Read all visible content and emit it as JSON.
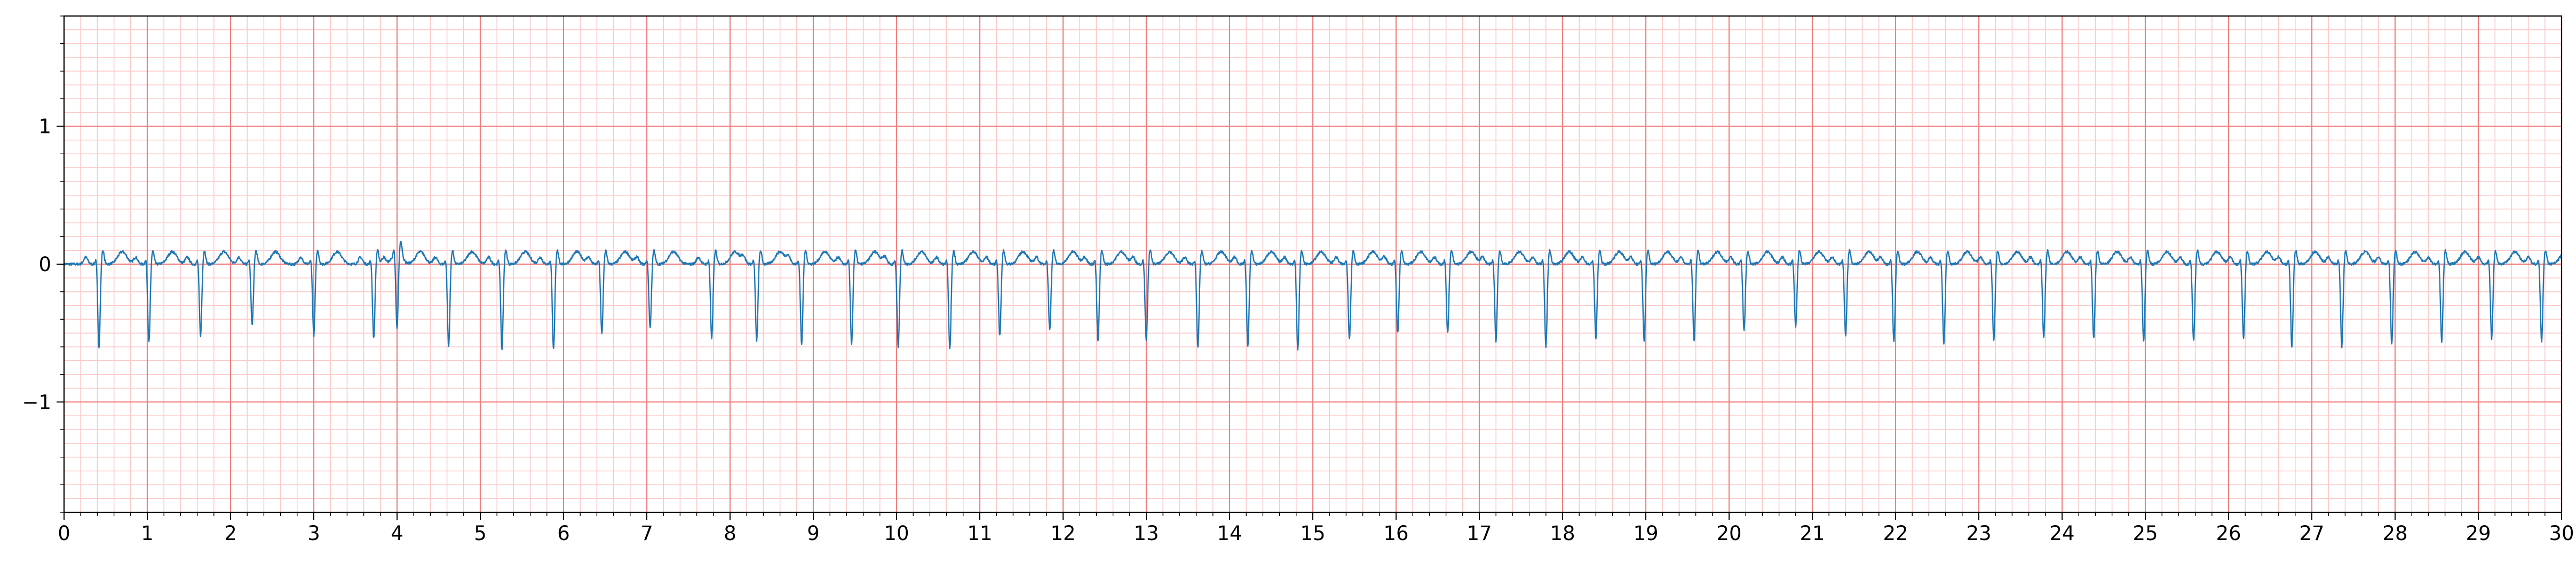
{
  "chart_data": {
    "type": "line",
    "title": "",
    "xlabel": "",
    "ylabel": "",
    "xlim": [
      0,
      30
    ],
    "ylim": [
      -1.8,
      1.8
    ],
    "x_ticks": [
      0,
      1,
      2,
      3,
      4,
      5,
      6,
      7,
      8,
      9,
      10,
      11,
      12,
      13,
      14,
      15,
      16,
      17,
      18,
      19,
      20,
      21,
      22,
      23,
      24,
      25,
      26,
      27,
      28,
      29,
      30
    ],
    "x_tick_labels": [
      "0",
      "1",
      "2",
      "3",
      "4",
      "5",
      "6",
      "7",
      "8",
      "9",
      "10",
      "11",
      "12",
      "13",
      "14",
      "15",
      "16",
      "17",
      "18",
      "19",
      "20",
      "21",
      "22",
      "23",
      "24",
      "25",
      "26",
      "27",
      "28",
      "29",
      "30"
    ],
    "y_ticks": [
      1,
      0,
      -1
    ],
    "y_tick_labels": [
      "1",
      "0",
      "−1"
    ],
    "grid": {
      "major_x_step": 1,
      "major_y_step": 1,
      "minor_x_step": 0.2,
      "minor_y_step": 0.1,
      "major_color": "#f08080",
      "minor_color": "#fcc8c8"
    },
    "series": [
      {
        "color": "#1f77b4",
        "beats_s": [
          0.42,
          1.02,
          1.64,
          2.26,
          3.0,
          3.72,
          4.0,
          4.62,
          5.26,
          5.88,
          6.46,
          7.04,
          7.78,
          8.32,
          8.86,
          9.46,
          10.02,
          10.64,
          11.24,
          11.84,
          12.42,
          13.0,
          13.62,
          14.22,
          14.82,
          15.44,
          16.02,
          16.62,
          17.2,
          17.8,
          18.4,
          18.98,
          19.58,
          20.18,
          20.8,
          21.4,
          21.98,
          22.58,
          23.18,
          23.78,
          24.38,
          24.98,
          25.58,
          26.18,
          26.76,
          27.36,
          27.96,
          28.56,
          29.16,
          29.76
        ],
        "r_depths": [
          -0.6,
          -0.57,
          -0.52,
          -0.44,
          -0.52,
          -0.54,
          -0.56,
          -0.6,
          -0.62,
          -0.62,
          -0.5,
          -0.46,
          -0.54,
          -0.56,
          -0.58,
          -0.58,
          -0.6,
          -0.62,
          -0.52,
          -0.48,
          -0.56,
          -0.56,
          -0.6,
          -0.6,
          -0.62,
          -0.54,
          -0.5,
          -0.5,
          -0.56,
          -0.6,
          -0.54,
          -0.56,
          -0.56,
          -0.48,
          -0.46,
          -0.52,
          -0.56,
          -0.58,
          -0.56,
          -0.54,
          -0.54,
          -0.56,
          -0.56,
          -0.54,
          -0.6,
          -0.6,
          -0.58,
          -0.56,
          -0.54,
          -0.56
        ]
      }
    ]
  }
}
